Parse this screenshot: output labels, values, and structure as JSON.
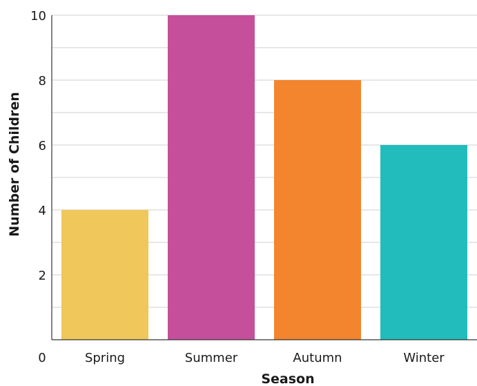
{
  "chart_data": {
    "type": "bar",
    "categories": [
      "Spring",
      "Summer",
      "Autumn",
      "Winter"
    ],
    "values": [
      4,
      10,
      8,
      6
    ],
    "colors": [
      "#efc75b",
      "#c64f9c",
      "#f2852e",
      "#22bcbc"
    ],
    "xlabel": "Season",
    "ylabel": "Number of Children",
    "ylim": [
      0,
      10
    ],
    "y_ticks": [
      0,
      2,
      4,
      6,
      8,
      10
    ],
    "y_tick_labels": [
      "0",
      "2",
      "4",
      "6",
      "8",
      "10"
    ],
    "grid": true,
    "minor_gridlines": true,
    "legend": "none"
  }
}
